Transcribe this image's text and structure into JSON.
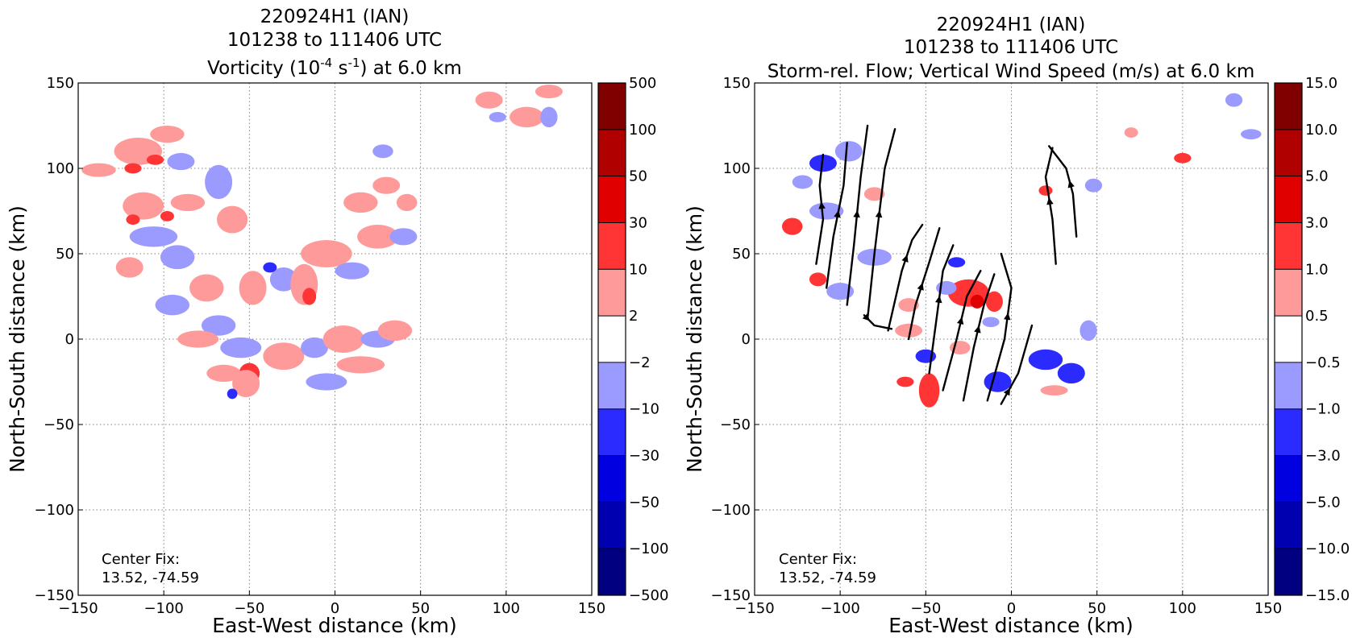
{
  "panels": [
    {
      "title_lines": [
        "220924H1 (IAN)",
        "101238 to 111406 UTC"
      ],
      "title_var": {
        "pre": "Vorticity (10",
        "sup1": "-4",
        "mid": " s",
        "sup2": "-1",
        "post": ") at 6.0 km"
      },
      "xlabel": "East-West distance (km)",
      "ylabel": "North-South distance (km)",
      "center_fix_label": "Center Fix:",
      "center_fix_value": "13.52, -74.59",
      "colorbar_labels": [
        "-500",
        "-100",
        "-50",
        "-30",
        "-10",
        "-2",
        "2",
        "10",
        "30",
        "50",
        "100",
        "500"
      ]
    },
    {
      "title_lines": [
        "220924H1 (IAN)",
        "101238 to 111406 UTC",
        "Storm-rel. Flow; Vertical Wind Speed (m/s) at 6.0 km"
      ],
      "xlabel": "East-West distance (km)",
      "ylabel": "North-South distance (km)",
      "center_fix_label": "Center Fix:",
      "center_fix_value": "13.52, -74.59",
      "colorbar_labels": [
        "-15.0",
        "-10.0",
        "-5.0",
        "-3.0",
        "-1.0",
        "-0.5",
        "0.5",
        "1.0",
        "3.0",
        "5.0",
        "10.0",
        "15.0"
      ]
    }
  ],
  "colors": {
    "levels": [
      "#000080",
      "#0000b0",
      "#0000e0",
      "#2b2bff",
      "#9a9aff",
      "#ffffff",
      "#ff9a9a",
      "#ff3434",
      "#e00000",
      "#b00000",
      "#800000"
    ],
    "grid": "#808080"
  },
  "chart_data": [
    {
      "type": "heatmap",
      "variable": "vorticity",
      "units": "10^-4 s^-1",
      "height_km": 6.0,
      "xlim": [
        -150,
        150
      ],
      "ylim": [
        -150,
        150
      ],
      "xticks": [
        -150,
        -100,
        -50,
        0,
        50,
        100,
        150
      ],
      "yticks": [
        -150,
        -100,
        -50,
        0,
        50,
        100,
        150
      ],
      "grid": true,
      "color_levels": [
        -500,
        -100,
        -50,
        -30,
        -10,
        -2,
        2,
        10,
        30,
        50,
        100,
        500
      ],
      "blobs": [
        {
          "x": -138,
          "y": 99,
          "rx": 10,
          "ry": 4,
          "level": 6
        },
        {
          "x": -115,
          "y": 110,
          "rx": 14,
          "ry": 8,
          "level": 6
        },
        {
          "x": -118,
          "y": 100,
          "rx": 5,
          "ry": 3,
          "level": 7
        },
        {
          "x": -105,
          "y": 105,
          "rx": 5,
          "ry": 3,
          "level": 7
        },
        {
          "x": -98,
          "y": 120,
          "rx": 10,
          "ry": 5,
          "level": 6
        },
        {
          "x": -90,
          "y": 104,
          "rx": 8,
          "ry": 5,
          "level": 4
        },
        {
          "x": -112,
          "y": 78,
          "rx": 12,
          "ry": 8,
          "level": 6
        },
        {
          "x": -118,
          "y": 70,
          "rx": 4,
          "ry": 3,
          "level": 7
        },
        {
          "x": -98,
          "y": 72,
          "rx": 4,
          "ry": 3,
          "level": 7
        },
        {
          "x": -106,
          "y": 60,
          "rx": 14,
          "ry": 6,
          "level": 4
        },
        {
          "x": -86,
          "y": 80,
          "rx": 10,
          "ry": 5,
          "level": 6
        },
        {
          "x": -68,
          "y": 92,
          "rx": 8,
          "ry": 10,
          "level": 4
        },
        {
          "x": -60,
          "y": 70,
          "rx": 9,
          "ry": 8,
          "level": 6
        },
        {
          "x": -120,
          "y": 42,
          "rx": 8,
          "ry": 6,
          "level": 6
        },
        {
          "x": -92,
          "y": 48,
          "rx": 10,
          "ry": 7,
          "level": 4
        },
        {
          "x": -75,
          "y": 30,
          "rx": 10,
          "ry": 8,
          "level": 6
        },
        {
          "x": -95,
          "y": 20,
          "rx": 10,
          "ry": 6,
          "level": 4
        },
        {
          "x": -68,
          "y": 8,
          "rx": 10,
          "ry": 6,
          "level": 4
        },
        {
          "x": -80,
          "y": 0,
          "rx": 12,
          "ry": 5,
          "level": 6
        },
        {
          "x": -48,
          "y": 30,
          "rx": 8,
          "ry": 10,
          "level": 6
        },
        {
          "x": -30,
          "y": 35,
          "rx": 8,
          "ry": 7,
          "level": 4
        },
        {
          "x": -38,
          "y": 42,
          "rx": 4,
          "ry": 3,
          "level": 3
        },
        {
          "x": -18,
          "y": 32,
          "rx": 8,
          "ry": 12,
          "level": 6
        },
        {
          "x": -15,
          "y": 25,
          "rx": 4,
          "ry": 5,
          "level": 7
        },
        {
          "x": -55,
          "y": -5,
          "rx": 12,
          "ry": 6,
          "level": 4
        },
        {
          "x": -50,
          "y": -20,
          "rx": 6,
          "ry": 6,
          "level": 7
        },
        {
          "x": -52,
          "y": -26,
          "rx": 8,
          "ry": 8,
          "level": 6
        },
        {
          "x": -65,
          "y": -20,
          "rx": 10,
          "ry": 5,
          "level": 6
        },
        {
          "x": -60,
          "y": -32,
          "rx": 3,
          "ry": 3,
          "level": 3
        },
        {
          "x": -30,
          "y": -10,
          "rx": 12,
          "ry": 8,
          "level": 6
        },
        {
          "x": -12,
          "y": -5,
          "rx": 8,
          "ry": 6,
          "level": 4
        },
        {
          "x": 5,
          "y": 0,
          "rx": 12,
          "ry": 8,
          "level": 6
        },
        {
          "x": -5,
          "y": -25,
          "rx": 12,
          "ry": 5,
          "level": 4
        },
        {
          "x": 15,
          "y": -15,
          "rx": 14,
          "ry": 5,
          "level": 6
        },
        {
          "x": 25,
          "y": 0,
          "rx": 10,
          "ry": 5,
          "level": 4
        },
        {
          "x": 35,
          "y": 5,
          "rx": 10,
          "ry": 6,
          "level": 6
        },
        {
          "x": -5,
          "y": 50,
          "rx": 15,
          "ry": 8,
          "level": 6
        },
        {
          "x": 10,
          "y": 40,
          "rx": 10,
          "ry": 5,
          "level": 4
        },
        {
          "x": 25,
          "y": 60,
          "rx": 12,
          "ry": 7,
          "level": 6
        },
        {
          "x": 40,
          "y": 60,
          "rx": 8,
          "ry": 5,
          "level": 4
        },
        {
          "x": 15,
          "y": 80,
          "rx": 10,
          "ry": 6,
          "level": 6
        },
        {
          "x": 30,
          "y": 90,
          "rx": 8,
          "ry": 5,
          "level": 6
        },
        {
          "x": 28,
          "y": 110,
          "rx": 6,
          "ry": 4,
          "level": 4
        },
        {
          "x": 42,
          "y": 80,
          "rx": 6,
          "ry": 5,
          "level": 6
        },
        {
          "x": 90,
          "y": 140,
          "rx": 8,
          "ry": 5,
          "level": 6
        },
        {
          "x": 112,
          "y": 130,
          "rx": 10,
          "ry": 6,
          "level": 6
        },
        {
          "x": 125,
          "y": 145,
          "rx": 8,
          "ry": 4,
          "level": 6
        },
        {
          "x": 95,
          "y": 130,
          "rx": 5,
          "ry": 3,
          "level": 4
        },
        {
          "x": 125,
          "y": 130,
          "rx": 5,
          "ry": 6,
          "level": 4
        }
      ]
    },
    {
      "type": "heatmap",
      "variable": "vertical wind speed",
      "units": "m/s",
      "height_km": 6.0,
      "overlay": "storm-relative flow streamlines",
      "xlim": [
        -150,
        150
      ],
      "ylim": [
        -150,
        150
      ],
      "xticks": [
        -150,
        -100,
        -50,
        0,
        50,
        100,
        150
      ],
      "yticks": [
        -150,
        -100,
        -50,
        0,
        50,
        100,
        150
      ],
      "grid": true,
      "color_levels": [
        -15.0,
        -10.0,
        -5.0,
        -3.0,
        -1.0,
        -0.5,
        0.5,
        1.0,
        3.0,
        5.0,
        10.0,
        15.0
      ],
      "blobs": [
        {
          "x": -110,
          "y": 103,
          "rx": 8,
          "ry": 5,
          "level": 3
        },
        {
          "x": -95,
          "y": 110,
          "rx": 8,
          "ry": 6,
          "level": 4
        },
        {
          "x": -122,
          "y": 92,
          "rx": 6,
          "ry": 4,
          "level": 4
        },
        {
          "x": -128,
          "y": 66,
          "rx": 6,
          "ry": 5,
          "level": 7
        },
        {
          "x": -108,
          "y": 75,
          "rx": 10,
          "ry": 5,
          "level": 4
        },
        {
          "x": -113,
          "y": 35,
          "rx": 5,
          "ry": 4,
          "level": 7
        },
        {
          "x": -100,
          "y": 28,
          "rx": 8,
          "ry": 5,
          "level": 4
        },
        {
          "x": -80,
          "y": 48,
          "rx": 10,
          "ry": 5,
          "level": 4
        },
        {
          "x": -60,
          "y": 5,
          "rx": 8,
          "ry": 4,
          "level": 6
        },
        {
          "x": -62,
          "y": -25,
          "rx": 5,
          "ry": 3,
          "level": 7
        },
        {
          "x": -50,
          "y": -10,
          "rx": 6,
          "ry": 4,
          "level": 3
        },
        {
          "x": -48,
          "y": -30,
          "rx": 6,
          "ry": 10,
          "level": 7
        },
        {
          "x": -25,
          "y": 27,
          "rx": 12,
          "ry": 8,
          "level": 7
        },
        {
          "x": -20,
          "y": 22,
          "rx": 4,
          "ry": 4,
          "level": 8
        },
        {
          "x": -10,
          "y": 22,
          "rx": 5,
          "ry": 6,
          "level": 7
        },
        {
          "x": -38,
          "y": 30,
          "rx": 6,
          "ry": 4,
          "level": 4
        },
        {
          "x": -32,
          "y": 45,
          "rx": 5,
          "ry": 3,
          "level": 3
        },
        {
          "x": -12,
          "y": 10,
          "rx": 5,
          "ry": 3,
          "level": 4
        },
        {
          "x": -8,
          "y": -25,
          "rx": 8,
          "ry": 6,
          "level": 3
        },
        {
          "x": 20,
          "y": -12,
          "rx": 10,
          "ry": 6,
          "level": 3
        },
        {
          "x": 35,
          "y": -20,
          "rx": 8,
          "ry": 6,
          "level": 3
        },
        {
          "x": 25,
          "y": -30,
          "rx": 8,
          "ry": 3,
          "level": 6
        },
        {
          "x": 45,
          "y": 5,
          "rx": 5,
          "ry": 6,
          "level": 4
        },
        {
          "x": 20,
          "y": 87,
          "rx": 4,
          "ry": 3,
          "level": 7
        },
        {
          "x": 100,
          "y": 106,
          "rx": 5,
          "ry": 3,
          "level": 7
        },
        {
          "x": 48,
          "y": 90,
          "rx": 5,
          "ry": 4,
          "level": 4
        },
        {
          "x": 70,
          "y": 121,
          "rx": 4,
          "ry": 3,
          "level": 6
        },
        {
          "x": 130,
          "y": 140,
          "rx": 5,
          "ry": 4,
          "level": 4
        },
        {
          "x": 140,
          "y": 120,
          "rx": 6,
          "ry": 3,
          "level": 4
        },
        {
          "x": -80,
          "y": 85,
          "rx": 6,
          "ry": 4,
          "level": 6
        },
        {
          "x": -60,
          "y": 20,
          "rx": 6,
          "ry": 4,
          "level": 6
        },
        {
          "x": -30,
          "y": -5,
          "rx": 6,
          "ry": 4,
          "level": 6
        }
      ],
      "streamlines": [
        [
          [
            -114,
            44
          ],
          [
            -110,
            70
          ],
          [
            -112,
            90
          ],
          [
            -110,
            108
          ]
        ],
        [
          [
            -108,
            30
          ],
          [
            -104,
            60
          ],
          [
            -98,
            90
          ],
          [
            -96,
            115
          ]
        ],
        [
          [
            -96,
            20
          ],
          [
            -92,
            55
          ],
          [
            -88,
            95
          ],
          [
            -84,
            125
          ]
        ],
        [
          [
            -84,
            12
          ],
          [
            -80,
            50
          ],
          [
            -74,
            100
          ],
          [
            -68,
            123
          ]
        ],
        [
          [
            -72,
            5
          ],
          [
            -64,
            40
          ],
          [
            -58,
            58
          ],
          [
            -52,
            67
          ]
        ],
        [
          [
            -60,
            0
          ],
          [
            -56,
            20
          ],
          [
            -48,
            45
          ],
          [
            -42,
            65
          ]
        ],
        [
          [
            -48,
            -20
          ],
          [
            -44,
            10
          ],
          [
            -40,
            40
          ],
          [
            -34,
            55
          ]
        ],
        [
          [
            -40,
            -30
          ],
          [
            -32,
            0
          ],
          [
            -26,
            25
          ],
          [
            -18,
            40
          ]
        ],
        [
          [
            -28,
            -36
          ],
          [
            -22,
            -5
          ],
          [
            -16,
            20
          ],
          [
            -10,
            38
          ]
        ],
        [
          [
            -14,
            -36
          ],
          [
            -4,
            0
          ],
          [
            0,
            30
          ],
          [
            -6,
            50
          ]
        ],
        [
          [
            -6,
            -38
          ],
          [
            4,
            -20
          ],
          [
            12,
            8
          ]
        ],
        [
          [
            26,
            44
          ],
          [
            24,
            70
          ],
          [
            20,
            95
          ],
          [
            24,
            112
          ]
        ],
        [
          [
            38,
            60
          ],
          [
            36,
            85
          ],
          [
            32,
            100
          ],
          [
            22,
            113
          ]
        ],
        [
          [
            -86,
            14
          ],
          [
            -80,
            8
          ],
          [
            -70,
            6
          ]
        ]
      ]
    }
  ]
}
